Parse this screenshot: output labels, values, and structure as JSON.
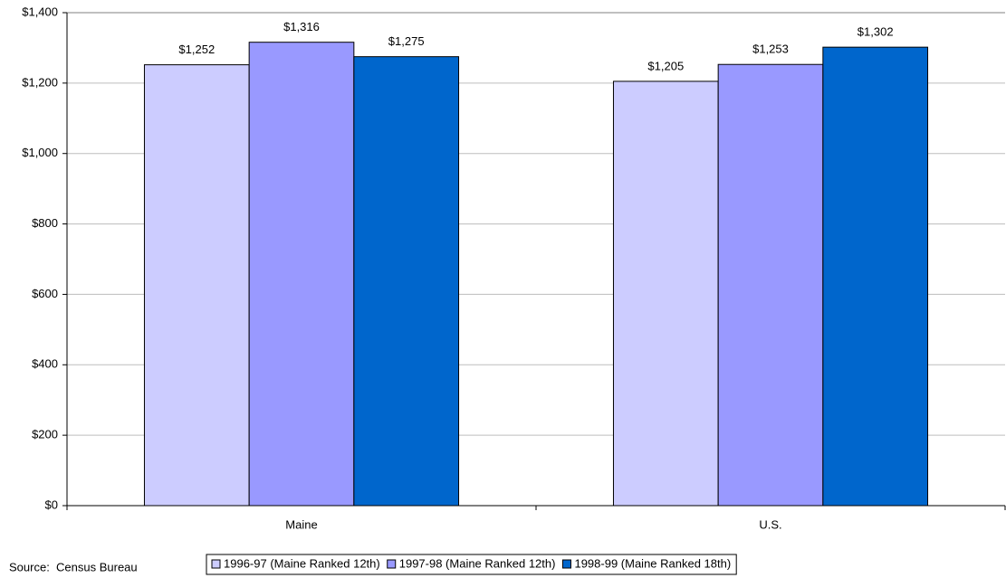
{
  "chart_data": {
    "type": "bar",
    "categories": [
      "Maine",
      "U.S."
    ],
    "series": [
      {
        "name": "1996-97 (Maine Ranked 12th)",
        "color": "#ccccff",
        "values": [
          1252,
          1205
        ],
        "value_labels": [
          "$1,252",
          "$1,205"
        ]
      },
      {
        "name": "1997-98 (Maine Ranked 12th)",
        "color": "#9999ff",
        "values": [
          1316,
          1253
        ],
        "value_labels": [
          "$1,316",
          "$1,253"
        ]
      },
      {
        "name": "1998-99 (Maine Ranked 18th)",
        "color": "#0066cc",
        "values": [
          1275,
          1302
        ],
        "value_labels": [
          "$1,275",
          "$1,302"
        ]
      }
    ],
    "ylim": [
      0,
      1400
    ],
    "yticks": [
      {
        "value": 0,
        "label": "$0"
      },
      {
        "value": 200,
        "label": "$200"
      },
      {
        "value": 400,
        "label": "$400"
      },
      {
        "value": 600,
        "label": "$600"
      },
      {
        "value": 800,
        "label": "$800"
      },
      {
        "value": 1000,
        "label": "$1,000"
      },
      {
        "value": 1200,
        "label": "$1,200"
      },
      {
        "value": 1400,
        "label": "$1,400"
      }
    ],
    "grid": true,
    "legend": "bottom",
    "source": "Source:  Census Bureau"
  }
}
